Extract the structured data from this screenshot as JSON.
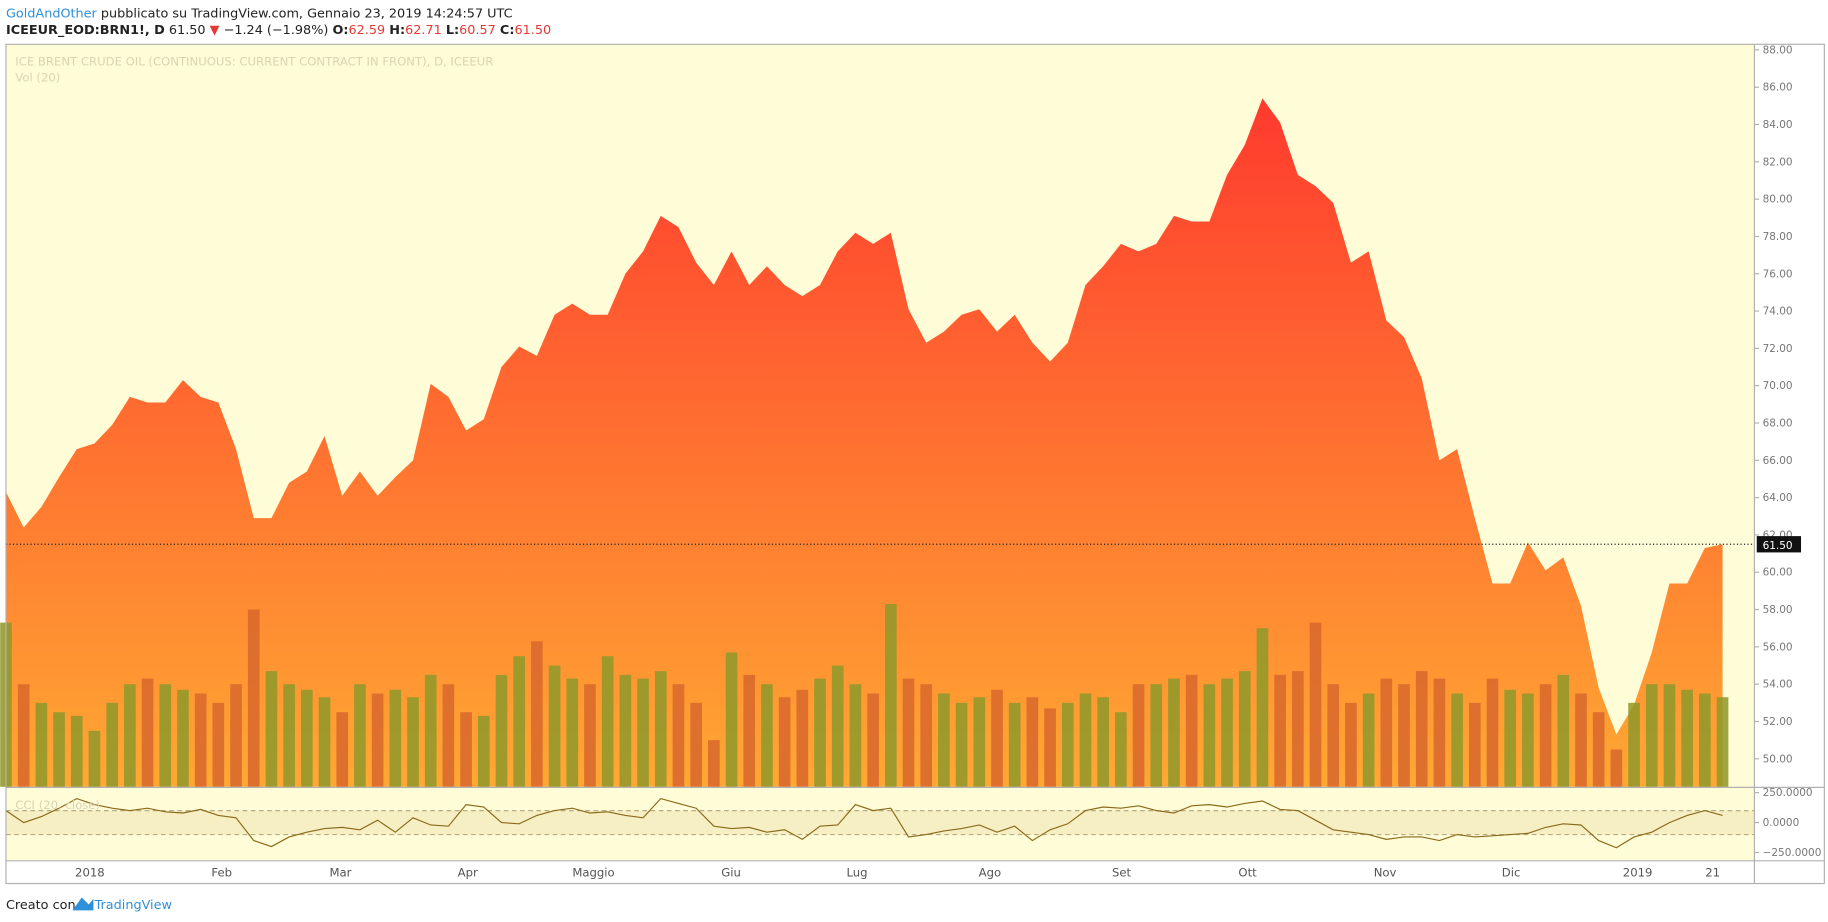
{
  "header": {
    "author": "GoldAndOther",
    "published": "pubblicato su TradingView.com, Gennaio 23, 2019 14:24:57 UTC",
    "symbol": "ICEEUR_EOD:BRN1!, D",
    "last": "61.50",
    "arrow": "▼",
    "change": "−1.24 (−1.98%)",
    "open_label": "O:",
    "open": "62.59",
    "high_label": "H:",
    "high": "62.71",
    "low_label": "L:",
    "low": "60.57",
    "close_label": "C:",
    "close": "61.50"
  },
  "footer": {
    "made_with": "Creato con",
    "brand": "TradingView"
  },
  "chart_data": [
    {
      "type": "area",
      "title": "ICE BRENT CRUDE OIL (CONTINUOUS: CURRENT CONTRACT IN FRONT), D, ICEEUR",
      "colors": [
        "#ff3a2e",
        "#ffa833"
      ],
      "values": [
        64.3,
        62.4,
        63.5,
        65.1,
        66.6,
        66.9,
        67.9,
        69.4,
        69.1,
        69.1,
        70.3,
        69.4,
        69.1,
        66.6,
        62.9,
        62.9,
        64.8,
        65.4,
        67.3,
        64.1,
        65.4,
        64.1,
        65.1,
        66.0,
        70.1,
        69.4,
        67.6,
        68.2,
        71.0,
        72.1,
        71.6,
        73.8,
        74.4,
        73.8,
        73.8,
        76.0,
        77.2,
        79.1,
        78.5,
        76.6,
        75.4,
        77.2,
        75.4,
        76.4,
        75.4,
        74.8,
        75.4,
        77.2,
        78.2,
        77.6,
        78.2,
        74.1,
        72.3,
        72.9,
        73.8,
        74.1,
        72.9,
        73.8,
        72.3,
        71.3,
        72.3,
        75.4,
        76.4,
        77.6,
        77.2,
        77.6,
        79.1,
        78.8,
        78.8,
        81.3,
        82.9,
        85.4,
        84.1,
        81.3,
        80.7,
        79.8,
        76.6,
        77.2,
        73.5,
        72.6,
        70.4,
        66.0,
        66.6,
        62.9,
        59.4,
        59.4,
        61.6,
        60.1,
        60.8,
        58.2,
        53.8,
        51.3,
        52.9,
        55.7,
        59.4,
        59.4,
        61.3,
        61.5
      ],
      "last_price": {
        "value": 61.5,
        "label": "61.50"
      },
      "xlim": [
        0,
        98.8
      ],
      "xticks": [
        {
          "value": 4.74,
          "label": "2018"
        },
        {
          "value": 12.19,
          "label": "Feb"
        },
        {
          "value": 18.9,
          "label": "Mar"
        },
        {
          "value": 26.09,
          "label": "Apr"
        },
        {
          "value": 33.2,
          "label": "Maggio"
        },
        {
          "value": 40.97,
          "label": "Giu"
        },
        {
          "value": 48.09,
          "label": "Lug"
        },
        {
          "value": 55.6,
          "label": "Ago"
        },
        {
          "value": 63.04,
          "label": "Set"
        },
        {
          "value": 70.16,
          "label": "Ott"
        },
        {
          "value": 77.93,
          "label": "Nov"
        },
        {
          "value": 85.05,
          "label": "Dic"
        },
        {
          "value": 92.2,
          "label": "2019"
        },
        {
          "value": 96.44,
          "label": "21"
        }
      ],
      "ylim": [
        48.5,
        88.3
      ],
      "yticks": [
        {
          "value": 50,
          "label": "50.00"
        },
        {
          "value": 52,
          "label": "52.00"
        },
        {
          "value": 54,
          "label": "54.00"
        },
        {
          "value": 56,
          "label": "56.00"
        },
        {
          "value": 58,
          "label": "58.00"
        },
        {
          "value": 60,
          "label": "60.00"
        },
        {
          "value": 62,
          "label": "62.00"
        },
        {
          "value": 64,
          "label": "64.00"
        },
        {
          "value": 66,
          "label": "66.00"
        },
        {
          "value": 68,
          "label": "68.00"
        },
        {
          "value": 70,
          "label": "70.00"
        },
        {
          "value": 72,
          "label": "72.00"
        },
        {
          "value": 74,
          "label": "74.00"
        },
        {
          "value": 76,
          "label": "76.00"
        },
        {
          "value": 78,
          "label": "78.00"
        },
        {
          "value": 80,
          "label": "80.00"
        },
        {
          "value": 82,
          "label": "82.00"
        },
        {
          "value": 84,
          "label": "84.00"
        },
        {
          "value": 86,
          "label": "86.00"
        },
        {
          "value": 88,
          "label": "88.00"
        }
      ]
    },
    {
      "type": "bar",
      "title": "Vol (20)",
      "up_color": "#92982a",
      "down_color": "#d9692c",
      "values": [
        88,
        55,
        45,
        40,
        38,
        30,
        45,
        55,
        58,
        55,
        52,
        50,
        45,
        55,
        95,
        62,
        55,
        52,
        48,
        40,
        55,
        50,
        52,
        48,
        60,
        55,
        40,
        38,
        60,
        70,
        78,
        65,
        58,
        55,
        70,
        60,
        58,
        62,
        55,
        45,
        25,
        72,
        60,
        55,
        48,
        52,
        58,
        65,
        55,
        50,
        98,
        58,
        55,
        50,
        45,
        48,
        52,
        45,
        48,
        42,
        45,
        50,
        48,
        40,
        55,
        55,
        58,
        60,
        55,
        58,
        62,
        85,
        60,
        62,
        88,
        55,
        45,
        50,
        58,
        55,
        62,
        58,
        50,
        45,
        58,
        52,
        50,
        55,
        60,
        50,
        40,
        20,
        45,
        55,
        55,
        52,
        50,
        48
      ],
      "ylim": [
        0,
        398
      ]
    },
    {
      "type": "line",
      "title": "CCI (20, close)",
      "color": "#8b6a1a",
      "band_color": "#f6efc4",
      "bands": [
        -100,
        100
      ],
      "values": [
        100,
        0,
        50,
        120,
        200,
        150,
        120,
        100,
        120,
        90,
        80,
        110,
        60,
        40,
        -150,
        -200,
        -120,
        -80,
        -50,
        -40,
        -60,
        20,
        -80,
        40,
        -20,
        -30,
        150,
        130,
        0,
        -10,
        60,
        100,
        120,
        80,
        90,
        60,
        40,
        200,
        160,
        120,
        -30,
        -50,
        -40,
        -80,
        -60,
        -140,
        -30,
        -20,
        150,
        100,
        120,
        -120,
        -100,
        -70,
        -50,
        -20,
        -80,
        -30,
        -150,
        -60,
        -10,
        100,
        130,
        120,
        140,
        100,
        80,
        140,
        150,
        130,
        160,
        180,
        110,
        100,
        20,
        -60,
        -80,
        -100,
        -140,
        -120,
        -120,
        -150,
        -100,
        -120,
        -110,
        -100,
        -90,
        -40,
        -10,
        -20,
        -150,
        -210,
        -120,
        -80,
        0,
        60,
        100,
        60
      ],
      "ylim": [
        -314,
        289
      ],
      "yticks": [
        {
          "value": 250,
          "label": "250.0000"
        },
        {
          "value": 0,
          "label": "0.0000"
        },
        {
          "value": -250,
          "label": "−250.0000"
        }
      ]
    }
  ]
}
